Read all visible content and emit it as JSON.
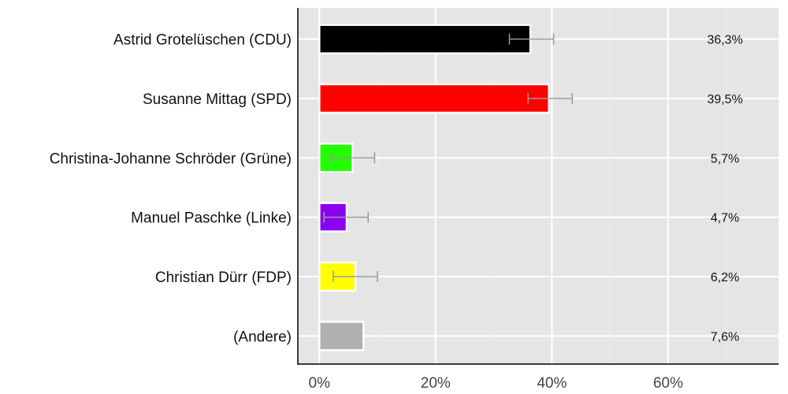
{
  "chart_data": {
    "type": "bar",
    "orientation": "horizontal",
    "categories": [
      "Astrid Grotelüschen (CDU)",
      "Susanne Mittag (SPD)",
      "Christina-Johanne Schröder (Grüne)",
      "Manuel Paschke (Linke)",
      "Christian Dürr (FDP)",
      "(Andere)"
    ],
    "values": [
      36.3,
      39.5,
      5.7,
      4.7,
      6.2,
      7.6
    ],
    "value_labels": [
      "36,3%",
      "39,5%",
      "5,7%",
      "4,7%",
      "6,2%",
      "7,6%"
    ],
    "error_bars": [
      [
        32.7,
        40.3
      ],
      [
        35.9,
        43.5
      ],
      [
        2.0,
        9.5
      ],
      [
        0.8,
        8.4
      ],
      [
        2.4,
        10.0
      ],
      null
    ],
    "colors": [
      "#000000",
      "#ff0000",
      "#22ff00",
      "#8b00f0",
      "#ffff00",
      "#b0b0b0"
    ],
    "xlim": [
      -3.7,
      79
    ],
    "xticks": [
      0,
      20,
      40,
      60
    ],
    "xtick_labels": [
      "0%",
      "20%",
      "40%",
      "60%"
    ],
    "grid": true,
    "background": "#e5e5e5",
    "errorbar_color": "#999999"
  }
}
